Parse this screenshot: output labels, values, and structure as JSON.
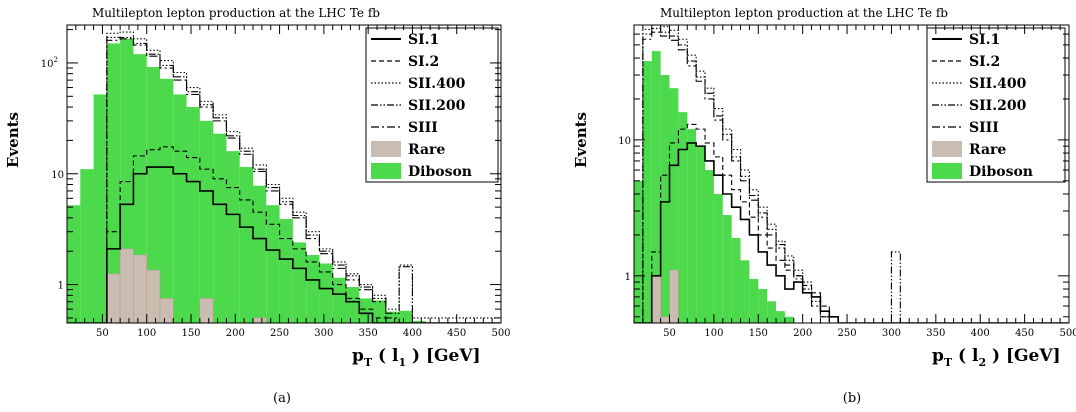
{
  "colors": {
    "diboson": "#4cd94c",
    "diboson_edge": "#2e9e2e",
    "rare": "#c9bdb2",
    "rare_edge": "#b89f8e",
    "axis": "#000000"
  },
  "chart_data": [
    {
      "type": "histogram",
      "panel_label": "(a)",
      "title": "Multilepton lepton production at the LHC    Te      fb",
      "xlabel": "p_T(l_1) [GeV]",
      "xlabel_parts": {
        "p": "p",
        "T": "T",
        "open": " ( ",
        "l": "l",
        "one": "1",
        "close": " ) [GeV]"
      },
      "ylabel": "Events",
      "log_y": true,
      "xlim": [
        10,
        500
      ],
      "ylim": [
        0.45,
        220
      ],
      "xticks": [
        50,
        100,
        150,
        200,
        250,
        300,
        350,
        400,
        450,
        500
      ],
      "yticks": [
        {
          "v": 1,
          "label": "1"
        },
        {
          "v": 10,
          "label": "10"
        },
        {
          "v": 100,
          "label": "10",
          "sup": "2"
        }
      ],
      "legend": [
        {
          "label": "SI.1",
          "style": "solid"
        },
        {
          "label": "SI.2",
          "style": "dash"
        },
        {
          "label": "SII.400",
          "style": "dot"
        },
        {
          "label": "SII.200",
          "style": "dashdotdot"
        },
        {
          "label": "SIII",
          "style": "dashdot"
        },
        {
          "label": "Rare",
          "style": "fill-rare"
        },
        {
          "label": "Diboson",
          "style": "fill-diboson"
        }
      ],
      "legend_position": "top-right",
      "bin_width": 15,
      "bin_start": 10,
      "diboson": [
        5.2,
        11,
        52,
        150,
        165,
        120,
        92,
        72,
        52,
        40,
        30,
        23,
        16,
        11.5,
        7.8,
        5.2,
        3.9,
        2.4,
        1.85,
        1.55,
        1.15,
        0.95,
        0.75,
        0.72,
        0.57,
        0.58,
        0.47,
        0.45,
        0.45,
        0.45,
        0.45,
        0.45,
        0.45
      ],
      "rare": [
        0,
        0,
        0,
        1.25,
        2.1,
        1.85,
        1.35,
        0.75,
        0.45,
        0.45,
        0.75,
        0.45,
        0.45,
        0.45,
        0.5,
        0.45,
        0.45,
        0.45,
        0.45,
        0.45,
        0.45,
        0.45,
        0.45,
        0.45,
        0.45,
        0.45,
        0.45,
        0.45,
        0.45,
        0.45,
        0.45,
        0.45,
        0.45
      ],
      "series": [
        {
          "name": "SI.1",
          "style": "solid",
          "values": [
            0.45,
            0.45,
            0.45,
            2.1,
            5.3,
            10,
            11.5,
            11.5,
            10,
            8.5,
            7,
            5.3,
            4.3,
            3.3,
            2.6,
            2.05,
            1.7,
            1.4,
            1.1,
            0.92,
            0.82,
            0.7,
            0.55,
            0.45,
            0.45,
            0.45,
            0.45,
            0.45,
            0.45,
            0.45,
            0.45,
            0.45,
            0.45
          ]
        },
        {
          "name": "SI.2",
          "style": "dash",
          "values": [
            0.45,
            0.45,
            0.45,
            3.0,
            8.5,
            14.5,
            16.5,
            17.5,
            16,
            14,
            11,
            9,
            7.5,
            5.8,
            4.5,
            3.5,
            2.6,
            2.1,
            1.6,
            1.3,
            1.0,
            0.75,
            0.6,
            0.5,
            0.45,
            0.45,
            0.45,
            0.45,
            0.45,
            0.45,
            0.45,
            0.45,
            0.45
          ]
        },
        {
          "name": "SII.400",
          "style": "dot",
          "values": [
            0.45,
            0.45,
            0.45,
            185,
            190,
            165,
            130,
            105,
            82,
            60,
            45,
            34,
            24,
            17,
            12,
            8,
            6,
            4.5,
            3.0,
            2.1,
            1.6,
            1.25,
            1.0,
            0.8,
            0.6,
            1.5,
            0.5,
            0.5,
            0.5,
            0.5,
            0.5,
            0.5,
            0.5
          ]
        },
        {
          "name": "SII.200",
          "style": "dashdotdot",
          "values": [
            0.45,
            0.45,
            0.45,
            170,
            170,
            150,
            120,
            95,
            75,
            55,
            42,
            32,
            22,
            16,
            11,
            7.5,
            5.6,
            4.2,
            2.8,
            2.0,
            1.5,
            1.2,
            0.95,
            0.75,
            0.55,
            1.45,
            0.45,
            0.45,
            0.45,
            0.45,
            0.45,
            0.45,
            0.45
          ]
        },
        {
          "name": "SIII",
          "style": "dashdot",
          "values": [
            0.45,
            0.45,
            0.45,
            160,
            165,
            145,
            115,
            90,
            70,
            52,
            40,
            30,
            21,
            15,
            10.5,
            7,
            5.3,
            4.0,
            2.6,
            1.9,
            1.4,
            1.1,
            0.9,
            0.7,
            0.5,
            0.45,
            0.45,
            0.45,
            0.45,
            0.45,
            0.45,
            0.45,
            0.45
          ]
        }
      ]
    },
    {
      "type": "histogram",
      "panel_label": "(b)",
      "title": "Multilepton lepton production at the LHC    Te      fb",
      "xlabel": "p_T(l_2) [GeV]",
      "xlabel_parts": {
        "p": "p",
        "T": "T",
        "open": " ( ",
        "l": "l",
        "one": "2",
        "close": " ) [GeV]"
      },
      "ylabel": "Events",
      "log_y": true,
      "xlim": [
        10,
        500
      ],
      "ylim": [
        0.45,
        70
      ],
      "xticks": [
        50,
        100,
        150,
        200,
        250,
        300,
        350,
        400,
        450,
        500
      ],
      "yticks": [
        {
          "v": 1,
          "label": "1"
        },
        {
          "v": 10,
          "label": "10"
        }
      ],
      "legend": [
        {
          "label": "SI.1",
          "style": "solid"
        },
        {
          "label": "SI.2",
          "style": "dash"
        },
        {
          "label": "SII.400",
          "style": "dot"
        },
        {
          "label": "SII.200",
          "style": "dashdotdot"
        },
        {
          "label": "SIII",
          "style": "dashdot"
        },
        {
          "label": "Rare",
          "style": "fill-rare"
        },
        {
          "label": "Diboson",
          "style": "fill-diboson"
        }
      ],
      "legend_position": "top-right",
      "bin_width": 10,
      "bin_start": 10,
      "diboson": [
        5,
        38,
        45,
        30,
        24,
        16,
        12,
        9,
        6,
        4,
        2.8,
        1.9,
        1.3,
        0.95,
        0.8,
        0.65,
        0.55,
        0.5,
        0.45,
        0.45,
        0.45,
        0.45,
        0.45,
        0.45,
        0.45,
        0.45,
        0.45,
        0.45,
        0.45,
        0.45,
        0.45,
        0.45,
        0.45,
        0.45,
        0.45,
        0.45,
        0.45,
        0.45,
        0.45,
        0.45,
        0.45,
        0.45,
        0.45,
        0.45,
        0.45,
        0.45,
        0.45,
        0.45,
        0.45
      ],
      "rare": [
        0,
        0.45,
        1.0,
        0.5,
        1.1,
        0.45,
        0.45,
        0.45,
        0.45,
        0.45,
        0.45,
        0.45,
        0.45,
        0.45,
        0.45,
        0.45,
        0.45,
        0.45,
        0.45,
        0.45,
        0.45,
        0.45,
        0.45,
        0.45,
        0.45,
        0.45,
        0.45,
        0.45,
        0.45,
        0.45,
        0.45,
        0.45,
        0.45,
        0.45,
        0.45,
        0.45,
        0.45,
        0.45,
        0.45,
        0.45,
        0.45,
        0.45,
        0.45,
        0.45,
        0.45,
        0.45,
        0.45,
        0.45,
        0.45
      ],
      "series": [
        {
          "name": "SI.1",
          "style": "solid",
          "values": [
            0.45,
            0.45,
            1.0,
            3.5,
            6.5,
            8.5,
            9.5,
            9,
            7,
            5.5,
            4,
            3.2,
            2.6,
            2.0,
            1.5,
            1.2,
            1.0,
            0.8,
            0.9,
            0.75,
            0.7,
            0.55,
            0.5,
            0.45,
            0.45,
            0.45,
            0.45,
            0.45,
            0.45,
            0.45,
            0.45,
            0.45,
            0.45,
            0.45,
            0.45,
            0.45,
            0.45,
            0.45,
            0.45,
            0.45,
            0.45,
            0.45,
            0.45,
            0.45,
            0.45,
            0.45,
            0.45,
            0.45,
            0.45
          ]
        },
        {
          "name": "SI.2",
          "style": "dash",
          "values": [
            0.45,
            0.45,
            1.5,
            5.5,
            9.5,
            12,
            13,
            12,
            9.5,
            7.5,
            5.5,
            4.3,
            3.5,
            2.7,
            2.0,
            1.6,
            1.3,
            1.1,
            1.0,
            0.85,
            0.75,
            0.6,
            0.5,
            0.45,
            0.45,
            0.45,
            0.45,
            0.45,
            0.45,
            0.45,
            0.45,
            0.45,
            0.45,
            0.45,
            0.45,
            0.45,
            0.45,
            0.45,
            0.45,
            0.45,
            0.45,
            0.45,
            0.45,
            0.45,
            0.45,
            0.45,
            0.45,
            0.45,
            0.45
          ]
        },
        {
          "name": "SII.400",
          "style": "dot",
          "values": [
            0.45,
            65,
            70,
            68,
            64,
            55,
            42,
            32,
            24,
            17,
            12,
            8.5,
            6,
            4.3,
            3.2,
            2.4,
            1.8,
            1.4,
            1.1,
            0.9,
            0.7,
            0.55,
            0.5,
            0.45,
            0.45,
            0.45,
            0.45,
            0.45,
            0.45,
            0.45,
            0.45,
            0.45,
            0.45,
            0.45,
            0.45,
            0.45,
            0.45,
            0.45,
            0.45,
            0.45,
            0.45,
            0.45,
            0.45,
            0.45,
            0.45,
            0.45,
            0.45,
            0.45,
            0.45
          ]
        },
        {
          "name": "SII.200",
          "style": "dashdotdot",
          "values": [
            0.45,
            60,
            66,
            62,
            58,
            50,
            38,
            29,
            22,
            15,
            11,
            7.5,
            5.4,
            3.9,
            2.9,
            2.2,
            1.7,
            1.3,
            1.0,
            0.8,
            0.65,
            0.5,
            0.45,
            0.45,
            0.45,
            0.45,
            0.45,
            0.45,
            0.45,
            1.5,
            0.45,
            0.45,
            0.45,
            0.45,
            0.45,
            0.45,
            0.45,
            0.45,
            0.45,
            0.45,
            0.45,
            0.45,
            0.45,
            0.45,
            0.45,
            0.45,
            0.45,
            0.45,
            0.45
          ]
        },
        {
          "name": "SIII",
          "style": "dashdot",
          "values": [
            0.45,
            55,
            62,
            58,
            54,
            46,
            35,
            27,
            20,
            14,
            10,
            7,
            5,
            3.6,
            2.7,
            2.0,
            1.6,
            1.2,
            0.95,
            0.75,
            0.6,
            0.5,
            0.45,
            0.45,
            0.45,
            0.45,
            0.45,
            0.45,
            0.45,
            0.45,
            0.45,
            0.45,
            0.45,
            0.45,
            0.45,
            0.45,
            0.45,
            0.45,
            0.45,
            0.45,
            0.45,
            0.45,
            0.45,
            0.45,
            0.45,
            0.45,
            0.45,
            0.45,
            0.45
          ]
        }
      ]
    }
  ]
}
